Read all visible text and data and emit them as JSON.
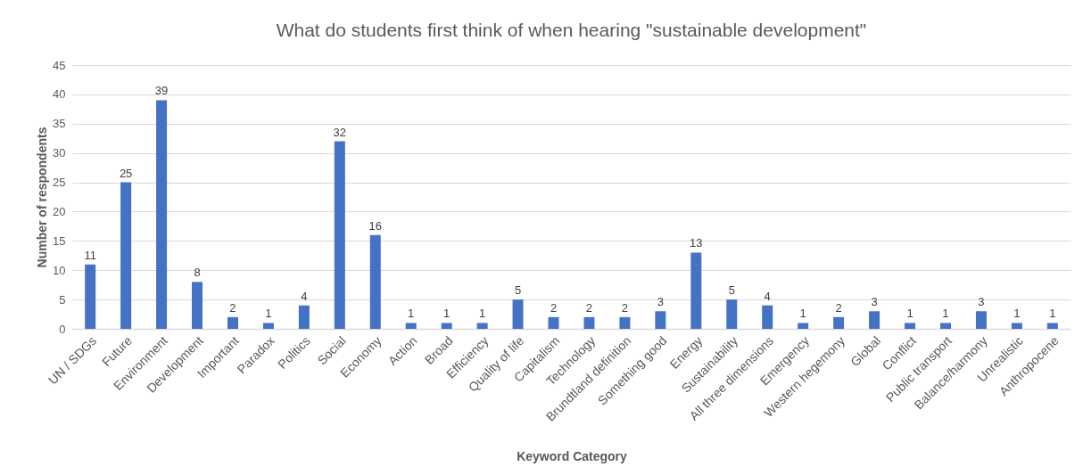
{
  "chart_data": {
    "type": "bar",
    "title": "What do students first think of when hearing \"sustainable development\"",
    "xlabel": "Keyword Category",
    "ylabel": "Number of respondents",
    "categories": [
      "UN / SDGs",
      "Future",
      "Environment",
      "Development",
      "Important",
      "Paradox",
      "Politics",
      "Social",
      "Economy",
      "Action",
      "Broad",
      "Efficiency",
      "Quality of life",
      "Capitalism",
      "Technology",
      "Brundtland definition",
      "Something good",
      "Energy",
      "Sustainability",
      "All three dimensions",
      "Emergency",
      "Western hegemony",
      "Global",
      "Conflict",
      "Public transport",
      "Balance/harmony",
      "Unrealistic",
      "Anthropocene"
    ],
    "values": [
      11,
      25,
      39,
      8,
      2,
      1,
      4,
      32,
      16,
      1,
      1,
      1,
      5,
      2,
      2,
      2,
      3,
      13,
      5,
      4,
      1,
      2,
      3,
      1,
      1,
      3,
      1,
      1
    ],
    "color": "#4472c4",
    "ylim": [
      0,
      45
    ],
    "yticks": [
      0,
      5,
      10,
      15,
      20,
      25,
      30,
      35,
      40,
      45
    ],
    "grid": "y",
    "data_labels": true
  }
}
